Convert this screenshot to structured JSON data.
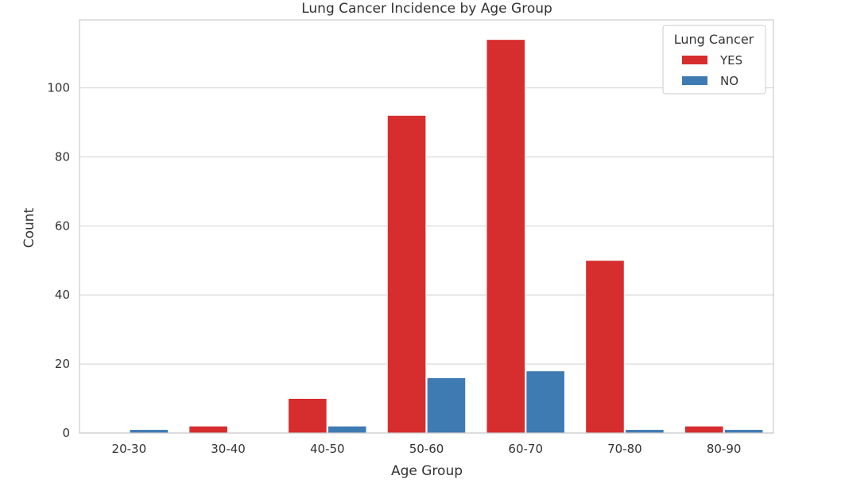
{
  "chart_data": {
    "type": "bar",
    "title": "Lung Cancer Incidence by Age Group",
    "xlabel": "Age Group",
    "ylabel": "Count",
    "categories": [
      "20-30",
      "30-40",
      "40-50",
      "50-60",
      "60-70",
      "70-80",
      "80-90"
    ],
    "series": [
      {
        "name": "YES",
        "color": "#d62d2f",
        "values": [
          0,
          2,
          10,
          92,
          114,
          50,
          2
        ]
      },
      {
        "name": "NO",
        "color": "#3f7bb3",
        "values": [
          1,
          0,
          2,
          16,
          18,
          1,
          1
        ]
      }
    ],
    "ylim": [
      0,
      119.7
    ],
    "yticks": [
      0,
      20,
      40,
      60,
      80,
      100
    ],
    "grid": true,
    "legend": {
      "title": "Lung Cancer",
      "placement": "top-right"
    }
  }
}
